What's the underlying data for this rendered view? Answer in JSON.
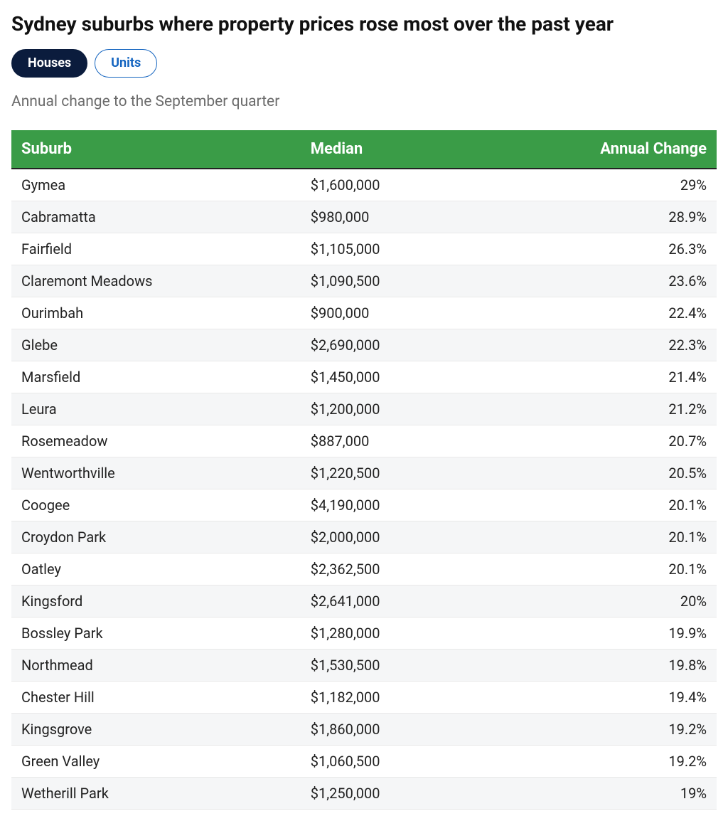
{
  "title": "Sydney suburbs where property prices rose most over the past year",
  "subtitle": "Annual change to the September quarter",
  "tabs": [
    {
      "label": "Houses",
      "active": true
    },
    {
      "label": "Units",
      "active": false
    }
  ],
  "table": {
    "type": "table",
    "header_bg": "#3a9c47",
    "header_text_color": "#ffffff",
    "header_fontsize": 22,
    "header_border_bottom": "#222222",
    "row_bg_odd": "#ffffff",
    "row_bg_even": "#f5f6f7",
    "cell_fontsize": 20,
    "cell_text_color": "#222222",
    "columns": [
      {
        "key": "suburb",
        "label": "Suburb",
        "align": "left",
        "width_pct": 41
      },
      {
        "key": "median",
        "label": "Median",
        "align": "left",
        "width_pct": 38
      },
      {
        "key": "change",
        "label": "Annual Change",
        "align": "right",
        "width_pct": 21
      }
    ],
    "rows": [
      {
        "suburb": "Gymea",
        "median": "$1,600,000",
        "change": "29%"
      },
      {
        "suburb": "Cabramatta",
        "median": "$980,000",
        "change": "28.9%"
      },
      {
        "suburb": "Fairfield",
        "median": "$1,105,000",
        "change": "26.3%"
      },
      {
        "suburb": "Claremont Meadows",
        "median": "$1,090,500",
        "change": "23.6%"
      },
      {
        "suburb": "Ourimbah",
        "median": "$900,000",
        "change": "22.4%"
      },
      {
        "suburb": "Glebe",
        "median": "$2,690,000",
        "change": "22.3%"
      },
      {
        "suburb": "Marsfield",
        "median": "$1,450,000",
        "change": "21.4%"
      },
      {
        "suburb": "Leura",
        "median": "$1,200,000",
        "change": "21.2%"
      },
      {
        "suburb": "Rosemeadow",
        "median": "$887,000",
        "change": "20.7%"
      },
      {
        "suburb": "Wentworthville",
        "median": "$1,220,500",
        "change": "20.5%"
      },
      {
        "suburb": "Coogee",
        "median": "$4,190,000",
        "change": "20.1%"
      },
      {
        "suburb": "Croydon Park",
        "median": "$2,000,000",
        "change": "20.1%"
      },
      {
        "suburb": "Oatley",
        "median": "$2,362,500",
        "change": "20.1%"
      },
      {
        "suburb": "Kingsford",
        "median": "$2,641,000",
        "change": "20%"
      },
      {
        "suburb": "Bossley Park",
        "median": "$1,280,000",
        "change": "19.9%"
      },
      {
        "suburb": "Northmead",
        "median": "$1,530,500",
        "change": "19.8%"
      },
      {
        "suburb": "Chester Hill",
        "median": "$1,182,000",
        "change": "19.4%"
      },
      {
        "suburb": "Kingsgrove",
        "median": "$1,860,000",
        "change": "19.2%"
      },
      {
        "suburb": "Green Valley",
        "median": "$1,060,500",
        "change": "19.2%"
      },
      {
        "suburb": "Wetherill Park",
        "median": "$1,250,000",
        "change": "19%"
      }
    ]
  },
  "styling": {
    "title_fontsize": 28,
    "title_color": "#111111",
    "subtitle_fontsize": 21,
    "subtitle_color": "#6b6b6b",
    "tab_active_bg": "#0b1c3d",
    "tab_active_text": "#ffffff",
    "tab_inactive_bg": "#ffffff",
    "tab_inactive_text": "#1565c0",
    "tab_inactive_border": "#1565c0",
    "tab_fontsize": 18,
    "background_color": "#ffffff"
  }
}
